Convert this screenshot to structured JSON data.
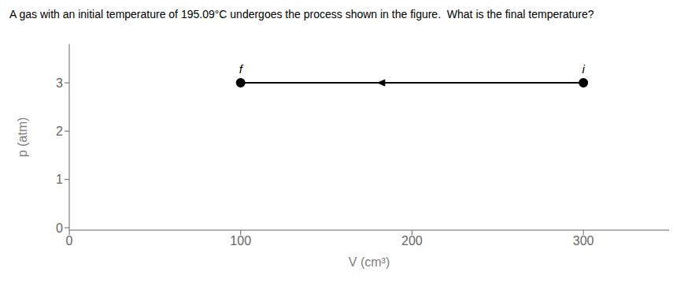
{
  "chart_data": {
    "type": "line",
    "title": "A gas with an initial temperature of 195.09°C undergoes the process shown in the figure.  What is the final temperature?",
    "xlabel": "V (cm³)",
    "ylabel": "p (atm)",
    "x": [
      300,
      100
    ],
    "values": [
      3,
      3
    ],
    "color": "#000000",
    "marker": "circle",
    "xlim": [
      0,
      350
    ],
    "ylim": [
      -0.05,
      3.8
    ],
    "xticks": [
      0,
      100,
      200,
      300
    ],
    "yticks": [
      0,
      1,
      2,
      3
    ],
    "grid": false,
    "annotations": [
      {
        "x": 100,
        "y": 3,
        "text": "f"
      },
      {
        "x": 300,
        "y": 3,
        "text": "i"
      }
    ]
  }
}
